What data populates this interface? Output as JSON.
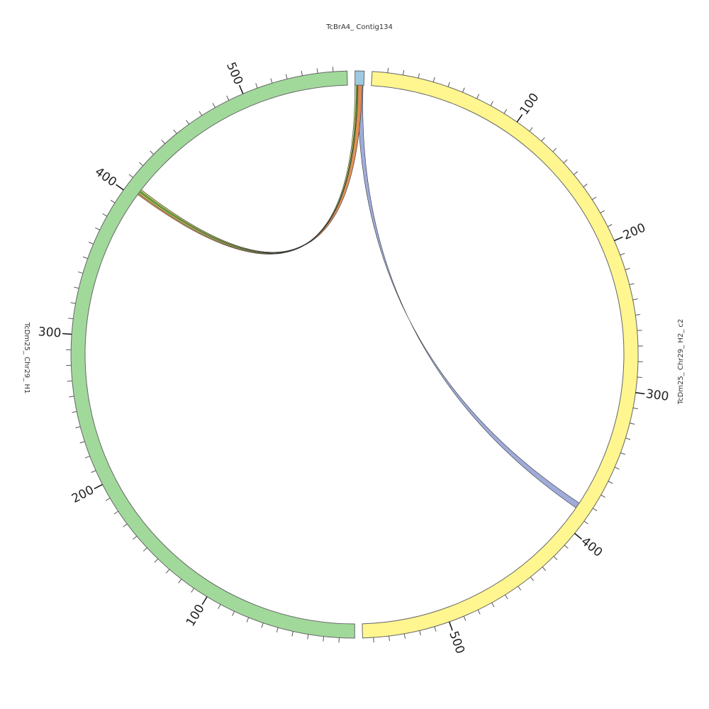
{
  "chart_data": {
    "type": "chord",
    "segments": [
      {
        "name": "TcBrA4_ Contig134",
        "length": 6,
        "color": "#9ecae1",
        "major_ticks": [],
        "minor_tick_step": null
      },
      {
        "name": "TcDm25_ Chr29_ H2_ c2",
        "length": 557,
        "color": "#fff68f",
        "major_ticks": [
          100,
          200,
          300,
          400,
          500
        ],
        "minor_tick_step": 10
      },
      {
        "name": "TcDm25_ Chr29_ H1",
        "length": 569,
        "color": "#a1d99b",
        "major_ticks": [
          100,
          200,
          300,
          400,
          500
        ],
        "minor_tick_step": 10
      }
    ],
    "links": [
      {
        "source": 0,
        "source_range": [
          2,
          5.5
        ],
        "target": 1,
        "target_range": [
          382,
          386
        ],
        "color": "#9aa8d8"
      },
      {
        "source": 0,
        "source_range": [
          2,
          5
        ],
        "target": 2,
        "target_range": [
          403,
          407
        ],
        "color": "#e08b4a"
      },
      {
        "source": 0,
        "source_range": [
          0,
          1
        ],
        "target": 2,
        "target_range": [
          404,
          407
        ],
        "color": "#d4e86a"
      },
      {
        "source": 0,
        "source_range": [
          1,
          1.8
        ],
        "target": 2,
        "target_range": [
          405,
          406
        ],
        "color": "#6fb54a"
      }
    ]
  }
}
